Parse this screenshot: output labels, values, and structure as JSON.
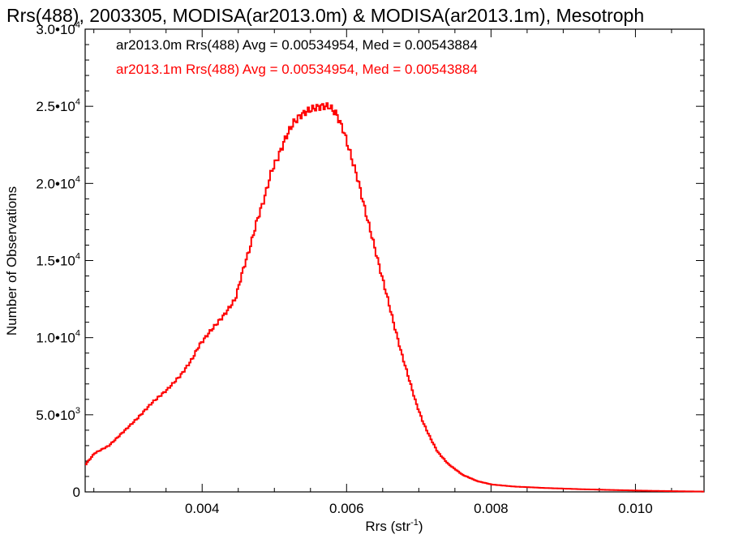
{
  "chart_data": {
    "type": "line",
    "step": true,
    "title": "Rrs(488), 2003305, MODISA(ar2013.0m) & MODISA(ar2013.1m), Mesotroph",
    "xlabel": "Rrs (str",
    "xlabel_sup": "-1",
    "xlabel_end": ")",
    "ylabel": "Number of Observations",
    "xlim": [
      0.00238,
      0.01095
    ],
    "ylim": [
      0,
      30000
    ],
    "x_ticks": [
      {
        "value": 0.004,
        "label": "0.004"
      },
      {
        "value": 0.006,
        "label": "0.006"
      },
      {
        "value": 0.008,
        "label": "0.008"
      },
      {
        "value": 0.01,
        "label": "0.010"
      }
    ],
    "y_ticks": [
      {
        "value": 0,
        "mant": "0",
        "exp": ""
      },
      {
        "value": 5000,
        "mant": "5.0•10",
        "exp": "3"
      },
      {
        "value": 10000,
        "mant": "1.0•10",
        "exp": "4"
      },
      {
        "value": 15000,
        "mant": "1.5•10",
        "exp": "4"
      },
      {
        "value": 20000,
        "mant": "2.0•10",
        "exp": "4"
      },
      {
        "value": 25000,
        "mant": "2.5•10",
        "exp": "4"
      },
      {
        "value": 30000,
        "mant": "3.0•10",
        "exp": "4"
      }
    ],
    "annotations": [
      {
        "text": "ar2013.0m Rrs(488) Avg = 0.00534954, Med = 0.00543884",
        "color": "#000000"
      },
      {
        "text": "ar2013.1m Rrs(488) Avg = 0.00534954, Med = 0.00543884",
        "color": "#ff0000"
      }
    ],
    "series": [
      {
        "color": "#ff0000",
        "points": [
          [
            0.00238,
            1800
          ],
          [
            0.0025,
            2500
          ],
          [
            0.0027,
            3000
          ],
          [
            0.0029,
            3900
          ],
          [
            0.0031,
            4800
          ],
          [
            0.0033,
            5800
          ],
          [
            0.0035,
            6600
          ],
          [
            0.0037,
            7600
          ],
          [
            0.00385,
            8600
          ],
          [
            0.00395,
            9500
          ],
          [
            0.0041,
            10400
          ],
          [
            0.0043,
            11500
          ],
          [
            0.00445,
            12500
          ],
          [
            0.00455,
            14300
          ],
          [
            0.00465,
            15800
          ],
          [
            0.00475,
            17600
          ],
          [
            0.00485,
            19000
          ],
          [
            0.00495,
            20800
          ],
          [
            0.00505,
            21800
          ],
          [
            0.00515,
            23000
          ],
          [
            0.00525,
            23900
          ],
          [
            0.00535,
            24400
          ],
          [
            0.00545,
            24700
          ],
          [
            0.00555,
            24900
          ],
          [
            0.00565,
            25000
          ],
          [
            0.00575,
            25000
          ],
          [
            0.00585,
            24500
          ],
          [
            0.00595,
            23400
          ],
          [
            0.00605,
            21800
          ],
          [
            0.00615,
            20200
          ],
          [
            0.00625,
            18200
          ],
          [
            0.00635,
            16400
          ],
          [
            0.00645,
            14500
          ],
          [
            0.00655,
            12700
          ],
          [
            0.00665,
            10800
          ],
          [
            0.00675,
            9000
          ],
          [
            0.00685,
            7400
          ],
          [
            0.00695,
            5800
          ],
          [
            0.00705,
            4500
          ],
          [
            0.00715,
            3500
          ],
          [
            0.00725,
            2600
          ],
          [
            0.0074,
            1800
          ],
          [
            0.0076,
            1100
          ],
          [
            0.0078,
            700
          ],
          [
            0.008,
            480
          ],
          [
            0.0083,
            350
          ],
          [
            0.0087,
            260
          ],
          [
            0.0092,
            180
          ],
          [
            0.0097,
            120
          ],
          [
            0.0102,
            70
          ],
          [
            0.0106,
            40
          ],
          [
            0.01095,
            20
          ]
        ]
      }
    ]
  }
}
